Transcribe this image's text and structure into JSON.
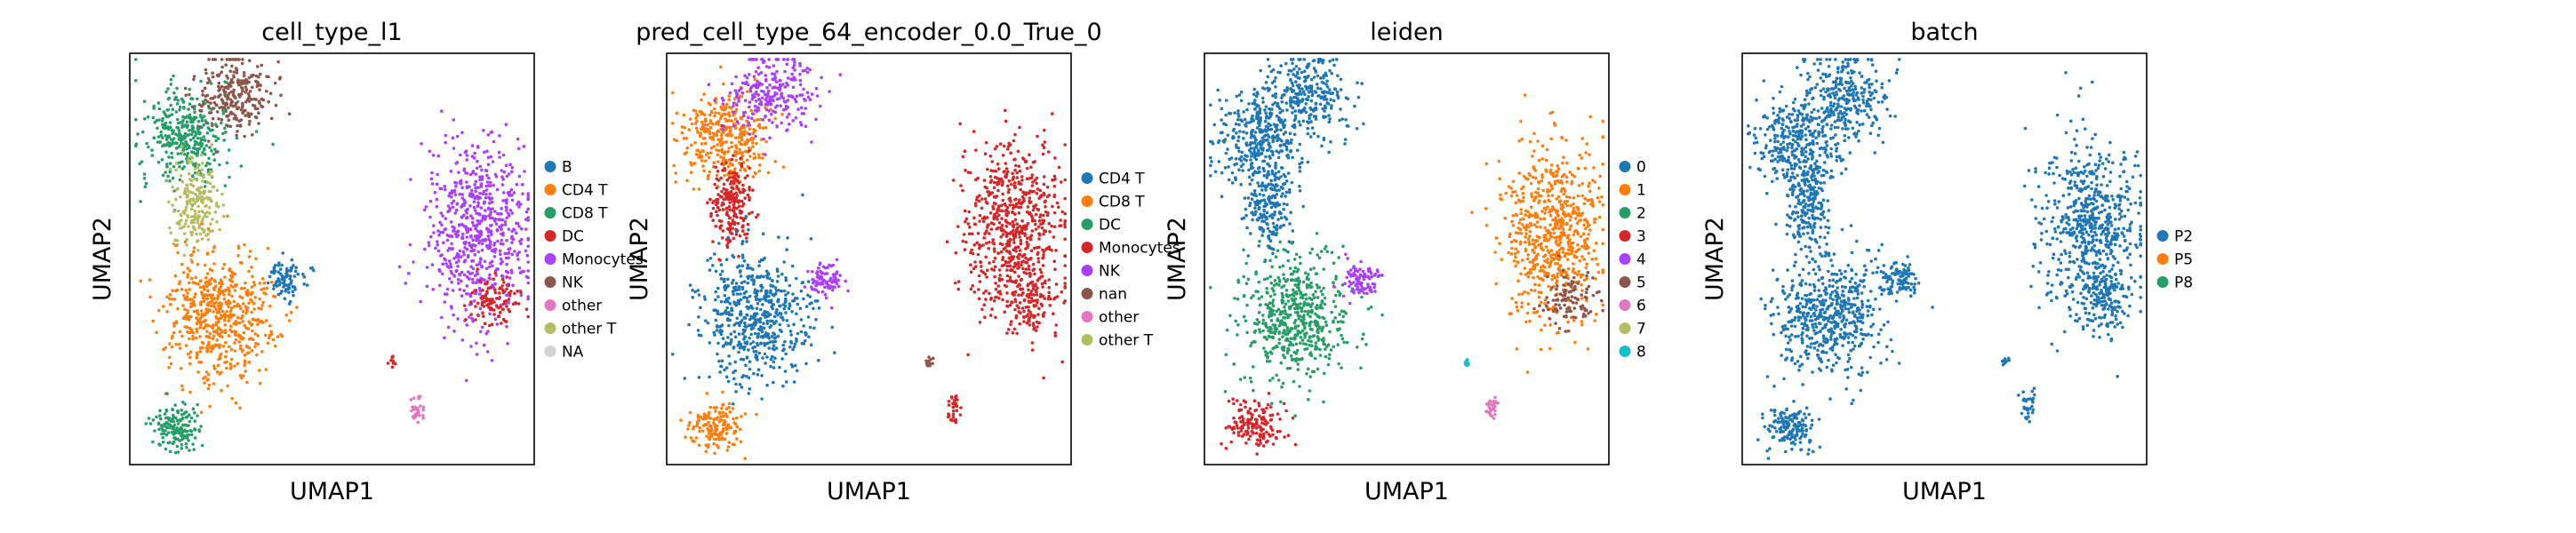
{
  "chart_data": [
    {
      "type": "scatter",
      "title": "cell_type_l1",
      "xlabel": "UMAP1",
      "ylabel": "UMAP2",
      "legend_position": "right",
      "legend": [
        {
          "label": "B",
          "color": "#1f77b4"
        },
        {
          "label": "CD4 T",
          "color": "#ff7f0e"
        },
        {
          "label": "CD8 T",
          "color": "#279e68"
        },
        {
          "label": "DC",
          "color": "#d62728"
        },
        {
          "label": "Monocytes",
          "color": "#aa40fc"
        },
        {
          "label": "NK",
          "color": "#8c564b"
        },
        {
          "label": "other",
          "color": "#e377c2"
        },
        {
          "label": "other T",
          "color": "#b5bd61"
        },
        {
          "label": "NA",
          "color": "#d3d3d3"
        }
      ],
      "clusters": {
        "topleft": "#279e68",
        "topright": "#8c564b",
        "neck": "#b5bd61",
        "body": "#ff7f0e",
        "bottom": "#279e68",
        "small": "#1f77b4",
        "right": "#aa40fc",
        "rightedge": "#d62728",
        "tiny1": "#d62728",
        "tiny2": "#e377c2"
      }
    },
    {
      "type": "scatter",
      "title": "pred_cell_type_64_encoder_0.0_True_0",
      "xlabel": "UMAP1",
      "ylabel": "UMAP2",
      "legend_position": "right",
      "legend": [
        {
          "label": "CD4 T",
          "color": "#1f77b4"
        },
        {
          "label": "CD8 T",
          "color": "#ff7f0e"
        },
        {
          "label": "DC",
          "color": "#279e68"
        },
        {
          "label": "Monocytes",
          "color": "#d62728"
        },
        {
          "label": "NK",
          "color": "#aa40fc"
        },
        {
          "label": "nan",
          "color": "#8c564b"
        },
        {
          "label": "other",
          "color": "#e377c2"
        },
        {
          "label": "other T",
          "color": "#b5bd61"
        }
      ],
      "clusters": {
        "topleft": "#ff7f0e",
        "topright": "#aa40fc",
        "neck": "#d62728",
        "body": "#1f77b4",
        "bottom": "#ff7f0e",
        "small": "#aa40fc",
        "right": "#d62728",
        "rightedge": "#d62728",
        "tiny1": "#8c564b",
        "tiny2": "#d62728"
      }
    },
    {
      "type": "scatter",
      "title": "leiden",
      "xlabel": "UMAP1",
      "ylabel": "UMAP2",
      "legend_position": "right",
      "legend": [
        {
          "label": "0",
          "color": "#1f77b4"
        },
        {
          "label": "1",
          "color": "#ff7f0e"
        },
        {
          "label": "2",
          "color": "#279e68"
        },
        {
          "label": "3",
          "color": "#d62728"
        },
        {
          "label": "4",
          "color": "#aa40fc"
        },
        {
          "label": "5",
          "color": "#8c564b"
        },
        {
          "label": "6",
          "color": "#e377c2"
        },
        {
          "label": "7",
          "color": "#b5bd61"
        },
        {
          "label": "8",
          "color": "#17becf"
        }
      ],
      "clusters": {
        "topleft": "#1f77b4",
        "topright": "#1f77b4",
        "neck": "#1f77b4",
        "body": "#279e68",
        "bottom": "#d62728",
        "small": "#aa40fc",
        "right": "#ff7f0e",
        "rightedge": "#8c564b",
        "tiny1": "#17becf",
        "tiny2": "#e377c2"
      }
    },
    {
      "type": "scatter",
      "title": "batch",
      "xlabel": "UMAP1",
      "ylabel": "UMAP2",
      "legend_position": "right",
      "legend": [
        {
          "label": "P2",
          "color": "#1f77b4"
        },
        {
          "label": "P5",
          "color": "#ff7f0e"
        },
        {
          "label": "P8",
          "color": "#279e68"
        }
      ],
      "clusters": {
        "topleft": "#1f77b4",
        "topright": "#1f77b4",
        "neck": "#1f77b4",
        "body": "#1f77b4",
        "bottom": "#1f77b4",
        "small": "#1f77b4",
        "right": "#1f77b4",
        "rightedge": "#1f77b4",
        "tiny1": "#1f77b4",
        "tiny2": "#1f77b4"
      }
    }
  ]
}
